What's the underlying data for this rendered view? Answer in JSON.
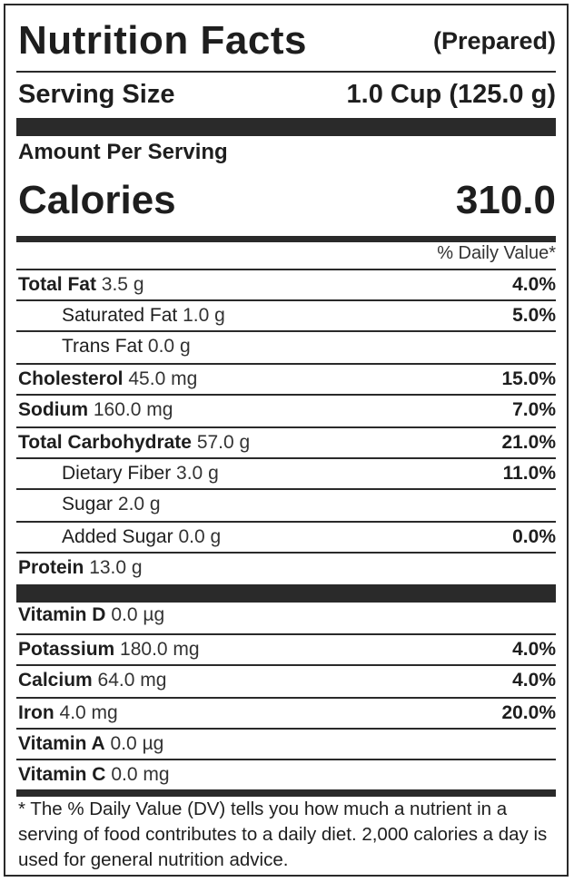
{
  "label": {
    "title": "Nutrition Facts",
    "subtitle": "(Prepared)",
    "serving_size_label": "Serving Size",
    "serving_size_value": "1.0 Cup (125.0 g)",
    "amount_per_serving": "Amount Per Serving",
    "calories_label": "Calories",
    "calories_value": "310.0",
    "daily_value_header": "% Daily Value*",
    "nutrients": [
      {
        "name": "Total Fat",
        "amount": "3.5 g",
        "dv": "4.0%"
      },
      {
        "name": "Saturated Fat",
        "amount": "1.0 g",
        "dv": "5.0%"
      },
      {
        "name": "Trans Fat",
        "amount": "0.0 g",
        "dv": ""
      },
      {
        "name": "Cholesterol",
        "amount": "45.0 mg",
        "dv": "15.0%"
      },
      {
        "name": "Sodium",
        "amount": "160.0 mg",
        "dv": "7.0%"
      },
      {
        "name": "Total Carbohydrate",
        "amount": "57.0 g",
        "dv": "21.0%"
      },
      {
        "name": "Dietary Fiber",
        "amount": "3.0 g",
        "dv": "11.0%"
      },
      {
        "name": "Sugar",
        "amount": "2.0 g",
        "dv": ""
      },
      {
        "name": "Added Sugar",
        "amount": "0.0 g",
        "dv": "0.0%"
      },
      {
        "name": "Protein",
        "amount": "13.0 g",
        "dv": ""
      }
    ],
    "vitamins": [
      {
        "name": "Vitamin D",
        "amount": "0.0 µg",
        "dv": ""
      },
      {
        "name": "Potassium",
        "amount": "180.0 mg",
        "dv": "4.0%"
      },
      {
        "name": "Calcium",
        "amount": "64.0 mg",
        "dv": "4.0%"
      },
      {
        "name": "Iron",
        "amount": "4.0 mg",
        "dv": "20.0%"
      },
      {
        "name": "Vitamin A",
        "amount": "0.0 µg",
        "dv": ""
      },
      {
        "name": "Vitamin C",
        "amount": "0.0 mg",
        "dv": ""
      }
    ],
    "footnote": "* The % Daily Value (DV) tells you how much a nutrient in a serving of food contributes to a daily diet. 2,000 calories a day is used for general nutrition advice."
  }
}
